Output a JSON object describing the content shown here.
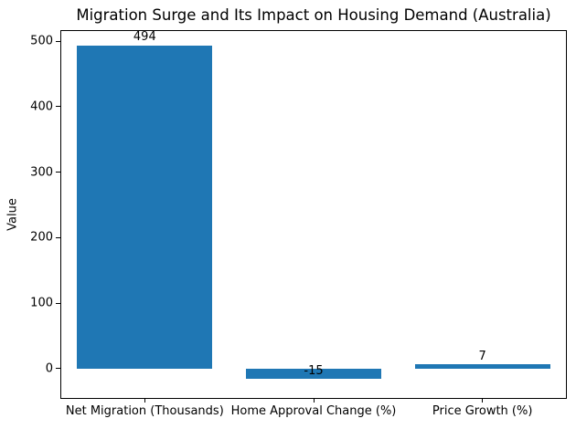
{
  "figure": {
    "background": "#ffffff",
    "spine_color": "#000000",
    "text_color": "#000000"
  },
  "chart_data": {
    "type": "bar",
    "title": "Migration Surge and Its Impact on Housing Demand (Australia)",
    "xlabel": "",
    "ylabel": "Value",
    "categories": [
      "Net Migration (Thousands)",
      "Home Approval Change (%)",
      "Price Growth (%)"
    ],
    "values": [
      494,
      -15,
      7
    ],
    "value_labels": [
      "494",
      "-15",
      "7"
    ],
    "yticks": [
      0,
      100,
      200,
      300,
      400,
      500
    ],
    "ylim": [
      -46,
      517
    ],
    "bar_color": "#1f77b4",
    "bar_width_fraction": 0.8,
    "grid": false,
    "legend": null,
    "value_label_offset": 3
  }
}
